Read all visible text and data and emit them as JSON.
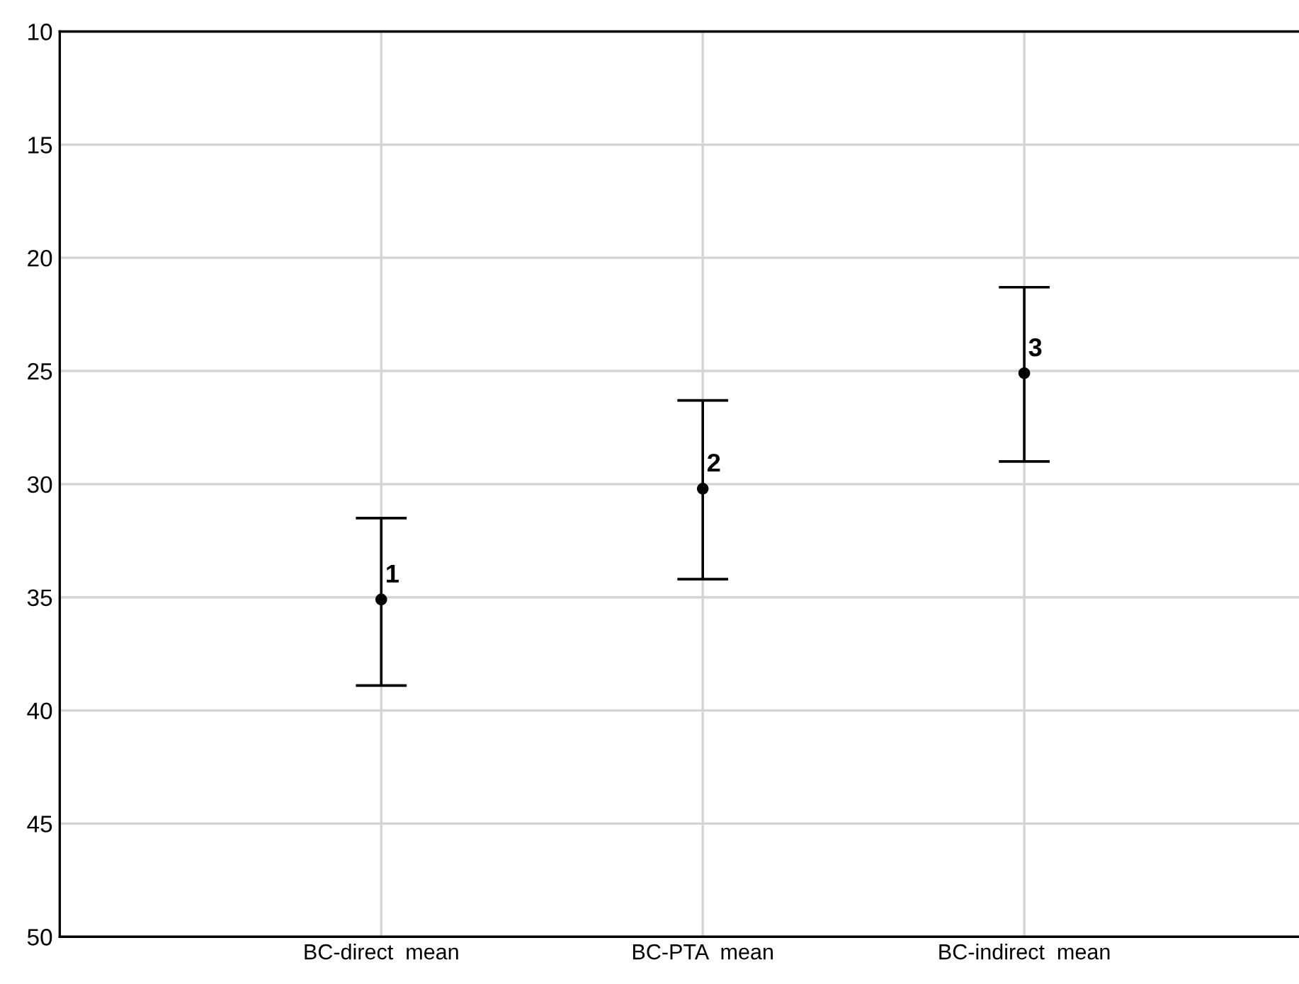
{
  "chart_data": {
    "type": "scatter",
    "categories": [
      "BC-direct  mean",
      "BC-PTA  mean",
      "BC-indirect  mean"
    ],
    "series": [
      {
        "color": "#000000",
        "values": [
          35.1,
          30.2,
          25.1
        ],
        "errors": [
          [
            31.5,
            38.9
          ],
          [
            26.3,
            34.2
          ],
          [
            21.3,
            29.0
          ]
        ]
      }
    ],
    "ylim": [
      50,
      10
    ],
    "yticks": [
      10,
      15,
      20,
      25,
      30,
      35,
      40,
      45,
      50
    ],
    "grid": true,
    "marker": "circle",
    "annotations": [
      {
        "text": "1",
        "x": "BC-direct  mean",
        "y": 35.1
      },
      {
        "text": "2",
        "x": "BC-PTA  mean",
        "y": 30.2
      },
      {
        "text": "3",
        "x": "BC-indirect  mean",
        "y": 25.1
      }
    ]
  }
}
